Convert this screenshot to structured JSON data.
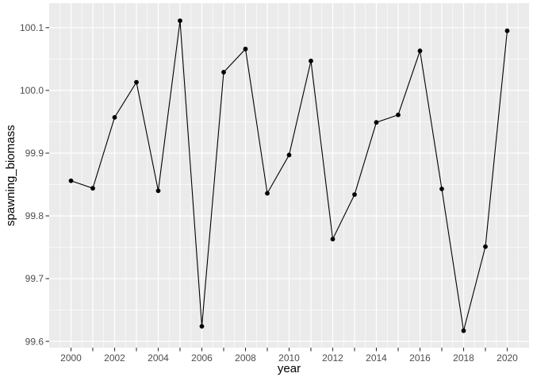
{
  "figure": {
    "background_color": "#FFFFFF",
    "panel_background_color": "#EBEBEB",
    "gridline_color": "#FFFFFF",
    "line_color": "#000000",
    "point_color": "#000000",
    "tick_mark_color": "#333333",
    "tick_label_color": "#4D4D4D",
    "axis_title_color": "#000000"
  },
  "chart_data": {
    "type": "line",
    "title": "",
    "xlabel": "year",
    "ylabel": "spawning_biomass",
    "x": [
      2000,
      2001,
      2002,
      2003,
      2004,
      2005,
      2006,
      2007,
      2008,
      2009,
      2010,
      2011,
      2012,
      2013,
      2014,
      2015,
      2016,
      2017,
      2018,
      2019,
      2020
    ],
    "series": [
      {
        "name": "spawning_biomass",
        "values": [
          99.856,
          99.844,
          99.957,
          100.013,
          99.84,
          100.111,
          99.624,
          100.029,
          100.066,
          99.836,
          99.897,
          100.047,
          99.763,
          99.834,
          99.949,
          99.961,
          100.063,
          99.843,
          99.617,
          99.751,
          100.095
        ]
      }
    ],
    "marker": "point",
    "legend": "none",
    "grid": "major-and-minor",
    "xlim": [
      1999,
      2021
    ],
    "ylim": [
      99.59,
      100.139
    ],
    "x_tick_breaks": [
      2000,
      2001,
      2002,
      2003,
      2004,
      2005,
      2006,
      2007,
      2008,
      2009,
      2010,
      2011,
      2012,
      2013,
      2014,
      2015,
      2016,
      2017,
      2018,
      2019,
      2020
    ],
    "x_labeled_breaks": [
      2000,
      2002,
      2004,
      2006,
      2008,
      2010,
      2012,
      2014,
      2016,
      2018,
      2020
    ],
    "x_tick_labels": [
      "2000",
      "2002",
      "2004",
      "2006",
      "2008",
      "2010",
      "2012",
      "2014",
      "2016",
      "2018",
      "2020"
    ],
    "y_tick_breaks": [
      99.6,
      99.7,
      99.8,
      99.9,
      100.0,
      100.1
    ],
    "y_tick_labels": [
      "99.6",
      "99.7",
      "99.8",
      "99.9",
      "100.0",
      "100.1"
    ],
    "y_minor_breaks": [
      99.65,
      99.75,
      99.85,
      99.95,
      100.05
    ]
  }
}
